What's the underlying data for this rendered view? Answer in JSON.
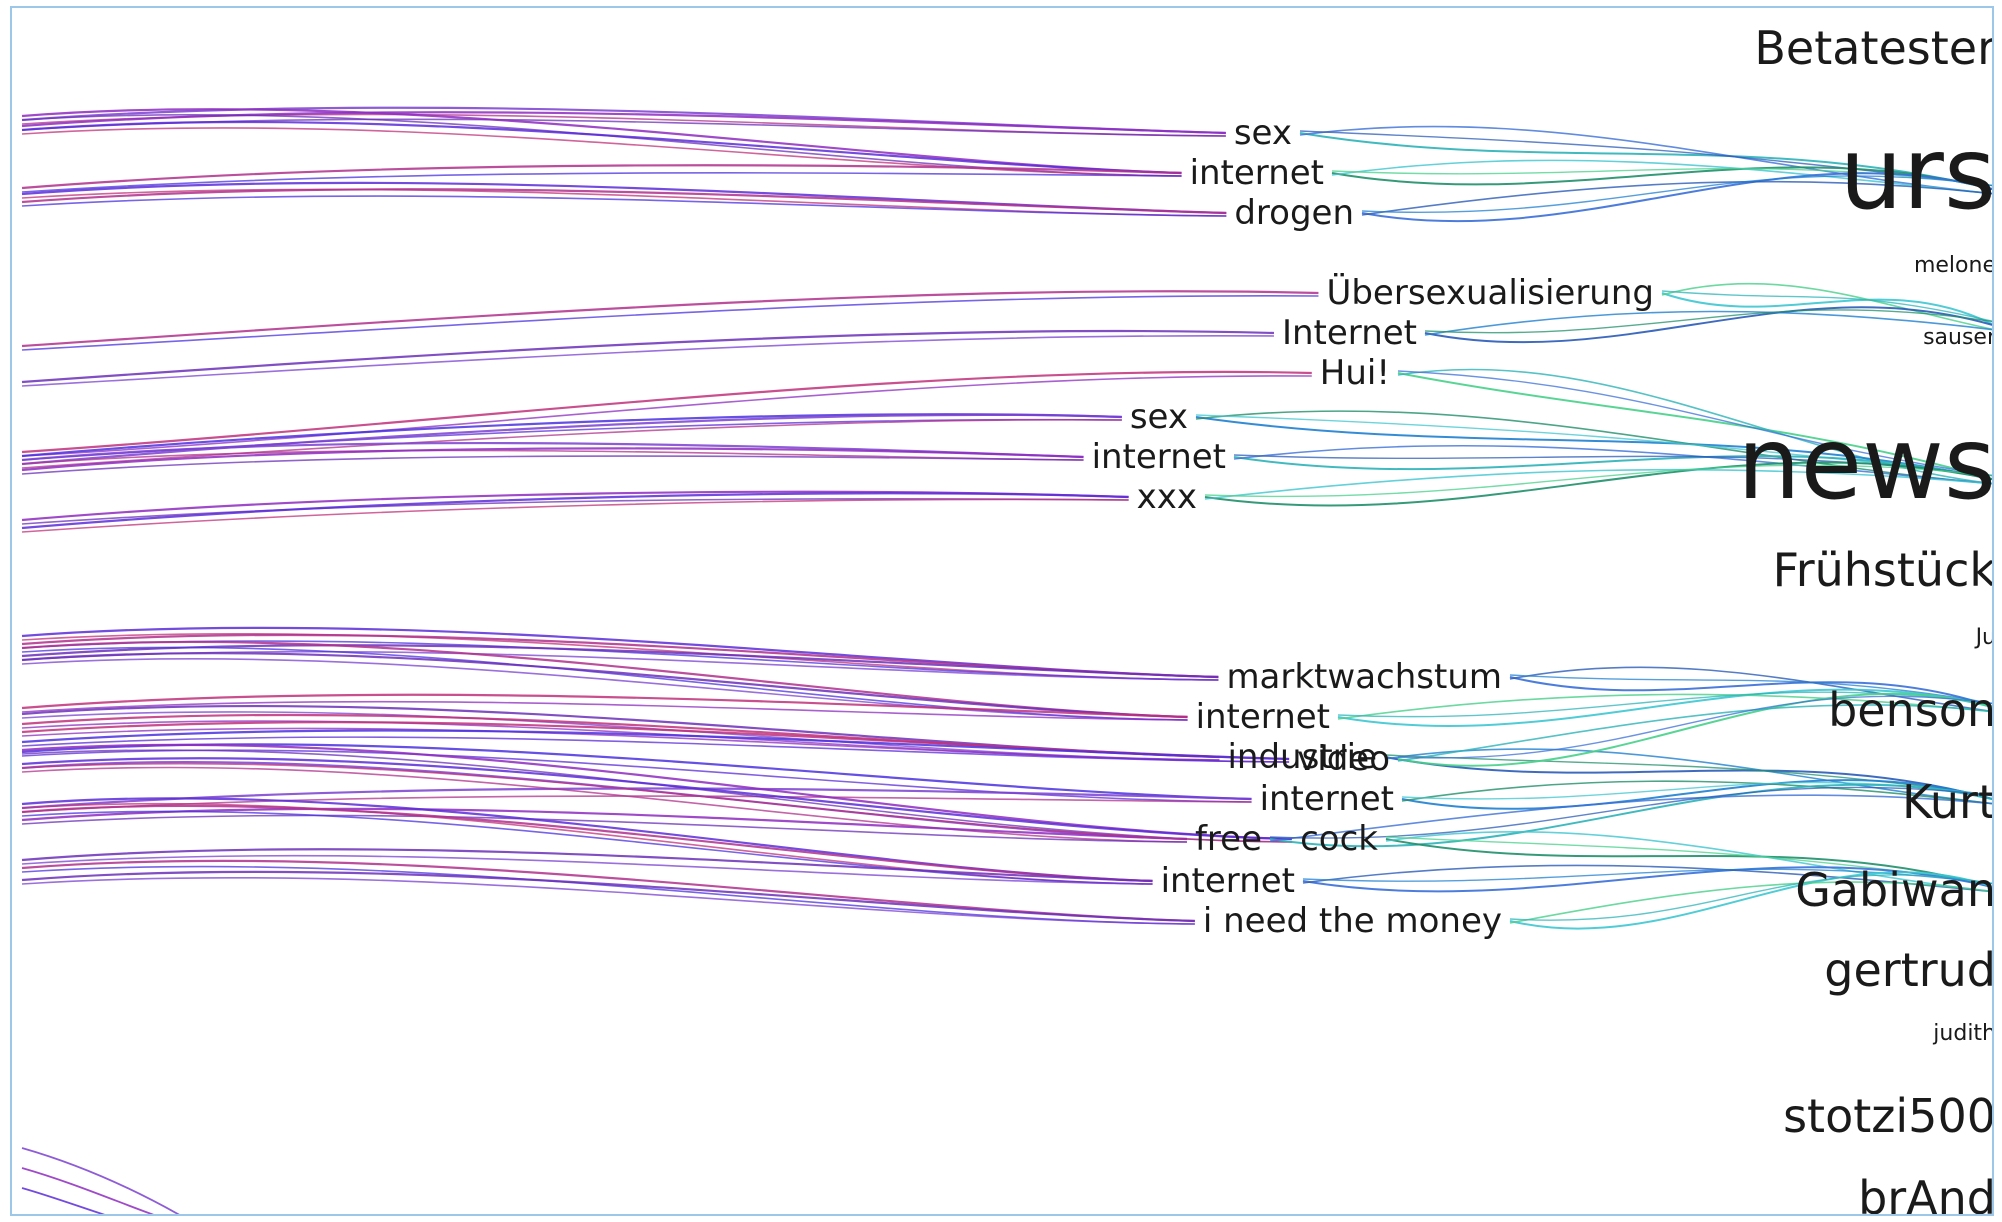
{
  "colors": {
    "border": "#9cc7e8",
    "text": "#1a1a1a",
    "left_curves": [
      "#7a3fd0",
      "#8e2cc0",
      "#5a2bd8",
      "#b0308c",
      "#6b2fb8",
      "#c0307a",
      "#4a30e0"
    ],
    "right_curves": [
      "#2bb3b8",
      "#1f8f6a",
      "#3a6fd8",
      "#3cc6d0",
      "#2a5bb8",
      "#46d08a",
      "#1e7fd0"
    ]
  },
  "users": [
    {
      "name": "Betatester",
      "size": "medium"
    },
    {
      "name": "urs",
      "size": "huge"
    },
    {
      "name": "melone",
      "size": "tiny"
    },
    {
      "name": "sauser",
      "size": "tiny"
    },
    {
      "name": "news",
      "size": "huge"
    },
    {
      "name": "Frühstück",
      "size": "medium"
    },
    {
      "name": "Ju",
      "size": "tiny"
    },
    {
      "name": "benson",
      "size": "medium"
    },
    {
      "name": "Kurt",
      "size": "medium"
    },
    {
      "name": "Gabiwan",
      "size": "medium"
    },
    {
      "name": "gertrud",
      "size": "medium"
    },
    {
      "name": "judith",
      "size": "tiny"
    },
    {
      "name": "stotzi500",
      "size": "medium"
    },
    {
      "name": "brAnd",
      "size": "medium"
    }
  ],
  "tags": [
    {
      "text": "sex",
      "user": "urs"
    },
    {
      "text": "internet",
      "user": "urs"
    },
    {
      "text": "drogen",
      "user": "urs"
    },
    {
      "text": "Übersexualisierung",
      "user": "sauser"
    },
    {
      "text": "Internet",
      "user": "sauser"
    },
    {
      "text": "Hui!",
      "user": "news"
    },
    {
      "text": "sex",
      "user": "news"
    },
    {
      "text": "internet",
      "user": "news"
    },
    {
      "text": "xxx",
      "user": "news"
    },
    {
      "text": "marktwachstum",
      "user": "benson"
    },
    {
      "text": "internet",
      "user": "benson"
    },
    {
      "text": "industrie",
      "user": "Kurt"
    },
    {
      "text": "video",
      "user": "benson"
    },
    {
      "text": "internet",
      "user": "Kurt"
    },
    {
      "text": "free",
      "user": "Kurt"
    },
    {
      "text": "cock",
      "user": "Gabiwan"
    },
    {
      "text": "internet",
      "user": "Gabiwan"
    },
    {
      "text": "i need the money",
      "user": "Gabiwan"
    }
  ]
}
